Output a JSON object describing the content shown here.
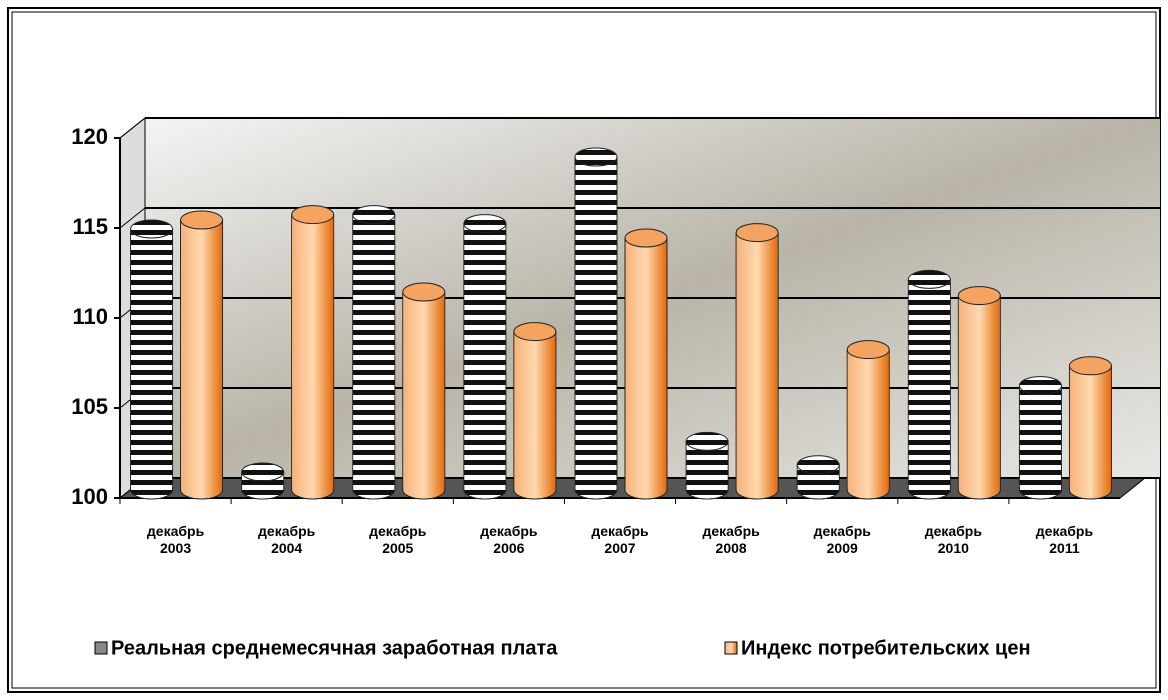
{
  "chart_data": {
    "type": "bar",
    "categories": [
      "декабрь 2003",
      "декабрь 2004",
      "декабрь 2005",
      "декабрь 2006",
      "декабрь 2007",
      "декабрь 2008",
      "декабрь 2009",
      "декабрь 2010",
      "декабрь 2011"
    ],
    "series": [
      {
        "name": "Реальная среднемесячная заработная плата",
        "color": "#000000",
        "values": [
          114.5,
          101.0,
          115.3,
          114.8,
          118.5,
          102.7,
          101.4,
          111.7,
          105.8
        ]
      },
      {
        "name": "Индекс потребительских цен",
        "color": "#f08a3c",
        "values": [
          115.0,
          115.3,
          111.0,
          108.8,
          114.0,
          114.3,
          107.8,
          110.8,
          106.9
        ]
      }
    ],
    "ylim": [
      100,
      120
    ],
    "yticks": [
      100,
      105,
      110,
      115,
      120
    ],
    "grid": true,
    "legend": "bottom"
  }
}
